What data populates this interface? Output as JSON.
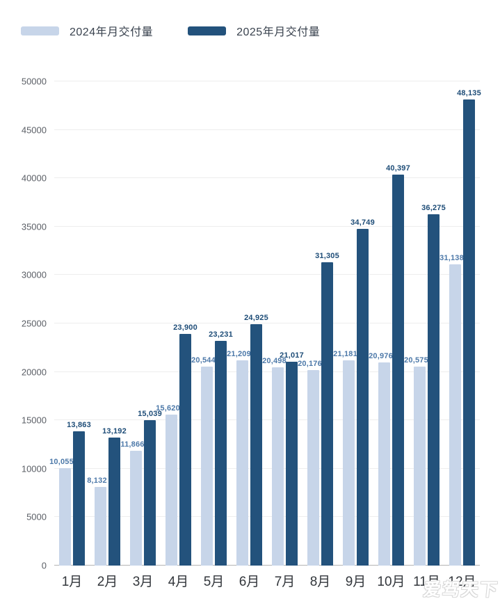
{
  "watermark": "爱驾天下",
  "chart_data": {
    "type": "bar",
    "title": "",
    "categories": [
      "1月",
      "2月",
      "3月",
      "4月",
      "5月",
      "6月",
      "7月",
      "8月",
      "9月",
      "10月",
      "11月",
      "12月"
    ],
    "series": [
      {
        "name": "2024年月交付量",
        "color": "#c7d5e9",
        "label_color": "#4d79a9",
        "values": [
          10055,
          8132,
          11866,
          15620,
          20544,
          21209,
          20498,
          20176,
          21181,
          20976,
          20575,
          31138
        ]
      },
      {
        "name": "2025年月交付量",
        "color": "#23527c",
        "label_color": "#1d4c77",
        "values": [
          13863,
          13192,
          15039,
          23900,
          23231,
          24925,
          21017,
          31305,
          34749,
          40397,
          36275,
          48135
        ]
      }
    ],
    "ylim": [
      0,
      50000
    ],
    "yticks": [
      0,
      5000,
      10000,
      15000,
      20000,
      25000,
      30000,
      35000,
      40000,
      45000,
      50000
    ],
    "ytick_labels": [
      "0",
      "5000",
      "10000",
      "15000",
      "20000",
      "25000",
      "30000",
      "35000",
      "40000",
      "45000",
      "50000"
    ],
    "xlabel": "",
    "ylabel": "",
    "grid": "horizontal",
    "legend_position": "top-left",
    "value_label_format": "thousands-comma"
  },
  "colors": {
    "background": "#ffffff",
    "gridline": "#ededed",
    "axis_line": "#b3b3b3",
    "y_tick_text": "#5b5f66",
    "x_tick_text": "#32363b",
    "legend_text": "#39424e"
  }
}
